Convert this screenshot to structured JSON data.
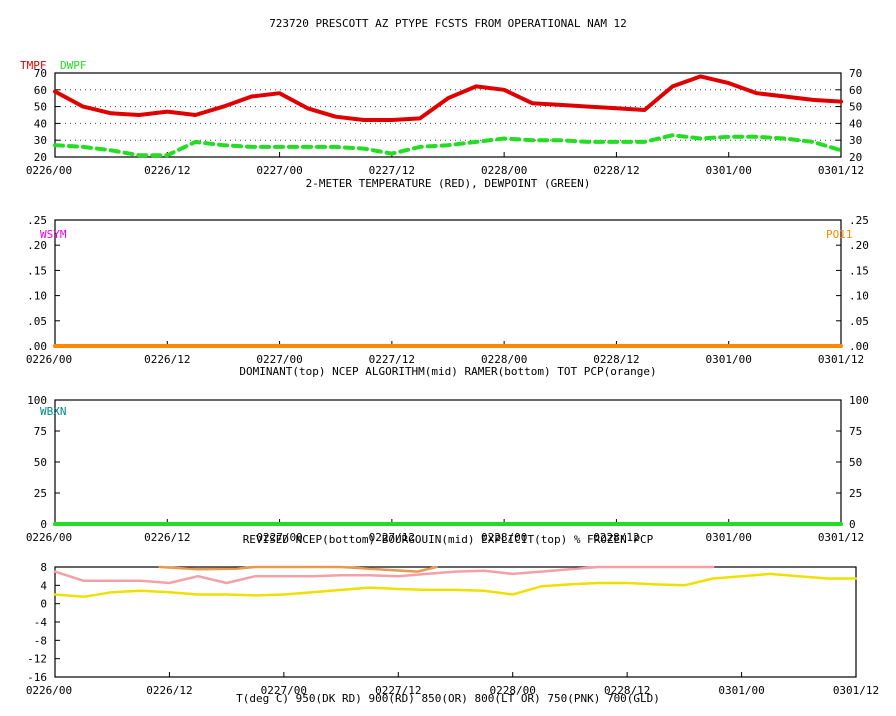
{
  "title": "723720  PRESCOTT AZ  PTYPE FCSTS FROM OPERATIONAL NAM 12",
  "x_ticks": [
    "0226/00",
    "0226/12",
    "0227/00",
    "0227/12",
    "0228/00",
    "0228/12",
    "0301/00",
    "0301/12"
  ],
  "colors": {
    "red": "#e00000",
    "green": "#22dd22",
    "orange": "#ff8800",
    "magenta": "#ee00ee",
    "teal": "#008888",
    "pink": "#f4a0a8",
    "gold": "#f0e000",
    "darkorange": "#e89a50"
  },
  "chart_data": [
    {
      "type": "line",
      "id": "temp",
      "xlabel": "2-METER TEMPERATURE (RED), DEWPOINT (GREEN)",
      "x_units": "hours from 0226/00",
      "ylim": [
        20,
        70
      ],
      "y_ticks": [
        "70",
        "60",
        "50",
        "40",
        "30",
        "20"
      ],
      "y_tick_values": [
        70,
        60,
        50,
        40,
        30,
        20
      ],
      "grid": true,
      "legend": [
        "TMPF",
        "DWPF"
      ],
      "series": [
        {
          "name": "TMPF",
          "color": "red",
          "x": [
            0,
            3,
            6,
            9,
            12,
            15,
            18,
            21,
            24,
            27,
            30,
            33,
            36,
            39,
            42,
            45,
            48,
            51,
            54,
            57,
            60,
            63,
            66,
            69,
            72,
            75,
            78,
            81,
            84
          ],
          "y": [
            59,
            50,
            46,
            45,
            47,
            45,
            50,
            56,
            58,
            49,
            44,
            42,
            42,
            43,
            55,
            62,
            60,
            52,
            51,
            50,
            49,
            48,
            62,
            68,
            64,
            58,
            56,
            54,
            53
          ]
        },
        {
          "name": "DWPF",
          "color": "green",
          "x": [
            0,
            3,
            6,
            9,
            12,
            15,
            18,
            21,
            24,
            27,
            30,
            33,
            36,
            39,
            42,
            45,
            48,
            51,
            54,
            57,
            60,
            63,
            66,
            69,
            72,
            75,
            78,
            81,
            84
          ],
          "y": [
            27,
            26,
            24,
            21,
            21,
            29,
            27,
            26,
            26,
            26,
            26,
            25,
            22,
            26,
            27,
            29,
            31,
            30,
            30,
            29,
            29,
            29,
            33,
            31,
            32,
            32,
            31,
            29,
            24
          ]
        }
      ]
    },
    {
      "type": "line",
      "id": "precip",
      "xlabel": "DOMINANT(top) NCEP ALGORITHM(mid) RAMER(bottom)   TOT PCP(orange)",
      "x_units": "hours from 0226/00",
      "ylim": [
        0,
        0.25
      ],
      "y_ticks": [
        ".25",
        ".20",
        ".15",
        ".10",
        ".05",
        ".00"
      ],
      "y_tick_values": [
        0.25,
        0.2,
        0.15,
        0.1,
        0.05,
        0
      ],
      "legend": [
        "WSYM",
        "PO11"
      ],
      "series": [
        {
          "name": "PO11",
          "color": "orange",
          "x": [
            0,
            84
          ],
          "y": [
            0,
            0
          ]
        }
      ]
    },
    {
      "type": "line",
      "id": "frozen",
      "xlabel": "REVISED NCEP(bottom) BOURGOUIN(mid) EXPLICIT(top)   % FROZEN PCP",
      "x_units": "hours from 0226/00",
      "ylim": [
        0,
        100
      ],
      "y_ticks": [
        "100",
        "75",
        "50",
        "25",
        "0"
      ],
      "y_tick_values": [
        100,
        75,
        50,
        25,
        0
      ],
      "legend": [
        "WBXN"
      ],
      "series": [
        {
          "name": "WBXN",
          "color": "green",
          "x": [
            0,
            84
          ],
          "y": [
            0,
            0
          ]
        }
      ]
    },
    {
      "type": "line",
      "id": "profile",
      "xlabel": "T(deg C)   950(DK RD) 900(RD) 850(OR) 800(LT OR) 750(PNK) 700(GLD)",
      "x_units": "hours from 0226/00",
      "ylim": [
        -16,
        8
      ],
      "y_ticks": [
        "8",
        "4",
        "0",
        "-4",
        "-8",
        "-12",
        "-16"
      ],
      "y_tick_values": [
        8,
        4,
        0,
        -4,
        -8,
        -12,
        -16
      ],
      "series": [
        {
          "name": "750",
          "color": "pink",
          "x": [
            0,
            3,
            6,
            9,
            12,
            15,
            18,
            21,
            24,
            27,
            30,
            33,
            36,
            39,
            42,
            45,
            48,
            51,
            54,
            57,
            60,
            63,
            66,
            69
          ],
          "y": [
            7,
            5,
            5,
            5,
            4.5,
            6,
            4.5,
            6,
            6,
            6,
            6.2,
            6.2,
            6,
            6.5,
            7,
            7.2,
            6.5,
            7,
            7.5,
            8,
            8,
            8,
            8,
            8
          ]
        },
        {
          "name": "800",
          "color": "darkorange",
          "x": [
            11,
            15,
            19,
            21,
            30,
            33,
            38,
            40
          ],
          "y": [
            8,
            7.5,
            7.6,
            8,
            8,
            7.6,
            7,
            8
          ]
        },
        {
          "name": "700",
          "color": "gold",
          "x": [
            0,
            3,
            6,
            9,
            12,
            15,
            18,
            21,
            24,
            27,
            30,
            33,
            36,
            39,
            42,
            45,
            48,
            51,
            54,
            57,
            60,
            63,
            66,
            69,
            72,
            75,
            78,
            81,
            84
          ],
          "y": [
            2,
            1.5,
            2.5,
            2.8,
            2.5,
            2,
            2,
            1.8,
            2,
            2.5,
            3,
            3.5,
            3.2,
            3,
            3,
            2.8,
            2,
            3.8,
            4.2,
            4.5,
            4.5,
            4.2,
            4,
            5.5,
            6,
            6.5,
            6,
            5.5,
            5.5
          ]
        }
      ]
    }
  ]
}
